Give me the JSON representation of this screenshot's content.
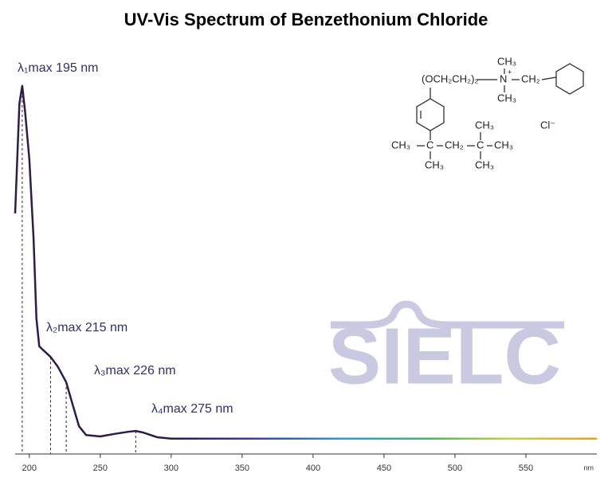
{
  "chart_data": {
    "type": "line",
    "title": "UV-Vis Spectrum of Benzethonium Chloride",
    "x_label": "nm",
    "x": [
      190,
      193,
      195,
      197,
      200,
      203,
      205,
      207,
      210,
      215,
      220,
      226,
      230,
      235,
      240,
      250,
      260,
      270,
      275,
      280,
      290,
      300,
      600
    ],
    "series": [
      {
        "color": "#2d1a4e",
        "values": [
          0.635,
          0.935,
          0.983,
          0.913,
          0.783,
          0.565,
          0.348,
          0.272,
          0.261,
          0.243,
          0.217,
          0.174,
          0.12,
          0.054,
          0.03,
          0.026,
          0.033,
          0.039,
          0.041,
          0.037,
          0.024,
          0.02,
          0.02
        ]
      }
    ],
    "gradient_colors": [
      "#2d1a4e",
      "#2d1a4e",
      "#3a3ad0",
      "#1fa0e0",
      "#30c060",
      "#c8d820",
      "#f0a000"
    ],
    "xlim": [
      190,
      600
    ],
    "xticks": [
      200,
      250,
      300,
      350,
      400,
      450,
      500,
      550
    ],
    "ylim": [
      0,
      1
    ],
    "annotations": [
      {
        "text": "λ₁max  195 nm",
        "x": 195
      },
      {
        "text": "λ₂max  215 nm",
        "x": 215
      },
      {
        "text": "λ₃max  226 nm",
        "x": 226
      },
      {
        "text": "λ₄max  275 nm",
        "x": 275
      }
    ],
    "watermark": "SIELC",
    "structure": {
      "labels": [
        "(OCH₂CH₂)₂",
        "N",
        "+",
        "CH₃",
        "CH₃",
        "CH₂",
        "CH₃",
        "C",
        "CH₂",
        "C",
        "CH₃",
        "CH₃",
        "CH₃",
        "CH₃",
        "Cl⁻"
      ]
    }
  }
}
